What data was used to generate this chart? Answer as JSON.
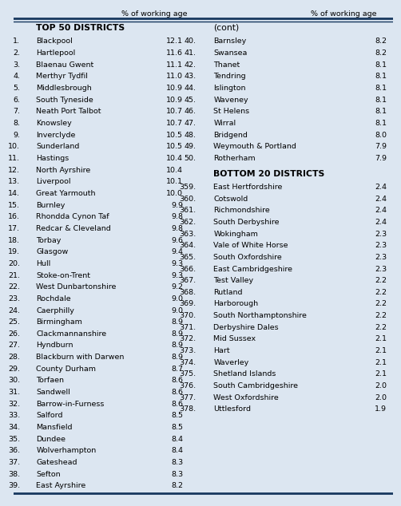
{
  "title_top": "% of working age",
  "title_top_right": "% of working age",
  "left_header": "TOP 50 DISTRICTS",
  "right_header": "(cont)",
  "right_header2": "BOTTOM 20 DISTRICTS",
  "left_rows": [
    [
      "1.",
      "Blackpool",
      "12.1"
    ],
    [
      "2.",
      "Hartlepool",
      "11.6"
    ],
    [
      "3.",
      "Blaenau Gwent",
      "11.1"
    ],
    [
      "4.",
      "Merthyr Tydfil",
      "11.0"
    ],
    [
      "5.",
      "Middlesbrough",
      "10.9"
    ],
    [
      "6.",
      "South Tyneside",
      "10.9"
    ],
    [
      "7.",
      "Neath Port Talbot",
      "10.7"
    ],
    [
      "8.",
      "Knowsley",
      "10.7"
    ],
    [
      "9.",
      "Inverclyde",
      "10.5"
    ],
    [
      "10.",
      "Sunderland",
      "10.5"
    ],
    [
      "11.",
      "Hastings",
      "10.4"
    ],
    [
      "12.",
      "North Ayrshire",
      "10.4"
    ],
    [
      "13.",
      "Liverpool",
      "10.1"
    ],
    [
      "14.",
      "Great Yarmouth",
      "10.0"
    ],
    [
      "15.",
      "Burnley",
      "9.9"
    ],
    [
      "16.",
      "Rhondda Cynon Taf",
      "9.8"
    ],
    [
      "17.",
      "Redcar & Cleveland",
      "9.8"
    ],
    [
      "18.",
      "Torbay",
      "9.6"
    ],
    [
      "19.",
      "Glasgow",
      "9.4"
    ],
    [
      "20.",
      "Hull",
      "9.3"
    ],
    [
      "21.",
      "Stoke-on-Trent",
      "9.3"
    ],
    [
      "22.",
      "West Dunbartonshire",
      "9.2"
    ],
    [
      "23.",
      "Rochdale",
      "9.0"
    ],
    [
      "24.",
      "Caerphilly",
      "9.0"
    ],
    [
      "25.",
      "Birmingham",
      "8.9"
    ],
    [
      "26.",
      "Clackmannanshire",
      "8.9"
    ],
    [
      "27.",
      "Hyndburn",
      "8.9"
    ],
    [
      "28.",
      "Blackburn with Darwen",
      "8.9"
    ],
    [
      "29.",
      "County Durham",
      "8.7"
    ],
    [
      "30.",
      "Torfaen",
      "8.6"
    ],
    [
      "31.",
      "Sandwell",
      "8.6"
    ],
    [
      "32.",
      "Barrow-in-Furness",
      "8.6"
    ],
    [
      "33.",
      "Salford",
      "8.5"
    ],
    [
      "34.",
      "Mansfield",
      "8.5"
    ],
    [
      "35.",
      "Dundee",
      "8.4"
    ],
    [
      "36.",
      "Wolverhampton",
      "8.4"
    ],
    [
      "37.",
      "Gateshead",
      "8.3"
    ],
    [
      "38.",
      "Sefton",
      "8.3"
    ],
    [
      "39.",
      "East Ayrshire",
      "8.2"
    ]
  ],
  "right_top_rows": [
    [
      "40.",
      "Barnsley",
      "8.2"
    ],
    [
      "41.",
      "Swansea",
      "8.2"
    ],
    [
      "42.",
      "Thanet",
      "8.1"
    ],
    [
      "43.",
      "Tendring",
      "8.1"
    ],
    [
      "44.",
      "Islington",
      "8.1"
    ],
    [
      "45.",
      "Waveney",
      "8.1"
    ],
    [
      "46.",
      "St Helens",
      "8.1"
    ],
    [
      "47.",
      "Wirral",
      "8.1"
    ],
    [
      "48.",
      "Bridgend",
      "8.0"
    ],
    [
      "49.",
      "Weymouth & Portland",
      "7.9"
    ],
    [
      "50.",
      "Rotherham",
      "7.9"
    ]
  ],
  "right_bottom_rows": [
    [
      "359.",
      "East Hertfordshire",
      "2.4"
    ],
    [
      "360.",
      "Cotswold",
      "2.4"
    ],
    [
      "361.",
      "Richmondshire",
      "2.4"
    ],
    [
      "362.",
      "South Derbyshire",
      "2.4"
    ],
    [
      "363.",
      "Wokingham",
      "2.3"
    ],
    [
      "364.",
      "Vale of White Horse",
      "2.3"
    ],
    [
      "365.",
      "South Oxfordshire",
      "2.3"
    ],
    [
      "366.",
      "East Cambridgeshire",
      "2.3"
    ],
    [
      "367.",
      "Test Valley",
      "2.2"
    ],
    [
      "368.",
      "Rutland",
      "2.2"
    ],
    [
      "369.",
      "Harborough",
      "2.2"
    ],
    [
      "370.",
      "South Northamptonshire",
      "2.2"
    ],
    [
      "371.",
      "Derbyshire Dales",
      "2.2"
    ],
    [
      "372.",
      "Mid Sussex",
      "2.1"
    ],
    [
      "373.",
      "Hart",
      "2.1"
    ],
    [
      "374.",
      "Waverley",
      "2.1"
    ],
    [
      "375.",
      "Shetland Islands",
      "2.1"
    ],
    [
      "376.",
      "South Cambridgeshire",
      "2.0"
    ],
    [
      "377.",
      "West Oxfordshire",
      "2.0"
    ],
    [
      "378.",
      "Uttlesford",
      "1.9"
    ]
  ],
  "bg_color": "#dce6f1",
  "header_line_color": "#17375e",
  "font_size": 6.8,
  "header_font_size": 7.8
}
